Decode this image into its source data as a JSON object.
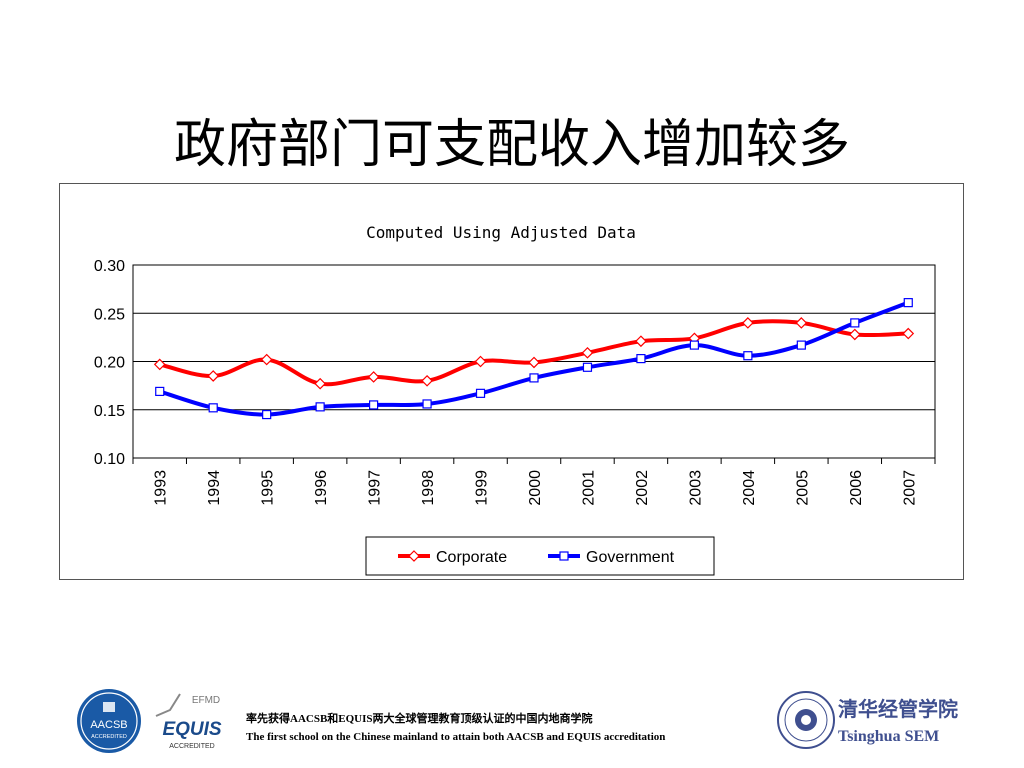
{
  "slide": {
    "title": "政府部门可支配收入增加较多"
  },
  "chart_data": {
    "type": "line",
    "title": "Computed Using Adjusted Data",
    "xlabel": "",
    "ylabel": "",
    "ylim": [
      0.1,
      0.3
    ],
    "y_ticks": [
      "0.10",
      "0.15",
      "0.20",
      "0.25",
      "0.30"
    ],
    "grid": true,
    "legend_position": "bottom",
    "categories": [
      "1993",
      "1994",
      "1995",
      "1996",
      "1997",
      "1998",
      "1999",
      "2000",
      "2001",
      "2002",
      "2003",
      "2004",
      "2005",
      "2006",
      "2007"
    ],
    "series": [
      {
        "name": "Corporate",
        "color": "#ff0000",
        "marker": "diamond",
        "values": [
          0.197,
          0.185,
          0.202,
          0.177,
          0.184,
          0.18,
          0.2,
          0.199,
          0.209,
          0.221,
          0.224,
          0.24,
          0.24,
          0.228,
          0.229
        ]
      },
      {
        "name": "Government",
        "color": "#0000ff",
        "marker": "square",
        "values": [
          0.169,
          0.152,
          0.145,
          0.153,
          0.155,
          0.156,
          0.167,
          0.183,
          0.194,
          0.203,
          0.217,
          0.206,
          0.217,
          0.24,
          0.261
        ]
      }
    ]
  },
  "footer": {
    "line_cn": "率先获得AACSB和EQUIS两大全球管理教育顶级认证的中国内地商学院",
    "line_en": "The first school on the Chinese  mainland to attain both AACSB and EQUIS accreditation",
    "aacsb_logo": {
      "name": "AACSB",
      "sub": "ACCREDITED"
    },
    "equis_logo": {
      "top": "EFMD",
      "name": "EQUIS",
      "sub": "ACCREDITED"
    },
    "tsinghua_logo": {
      "cn": "清华经管学院",
      "en": "Tsinghua SEM"
    }
  }
}
